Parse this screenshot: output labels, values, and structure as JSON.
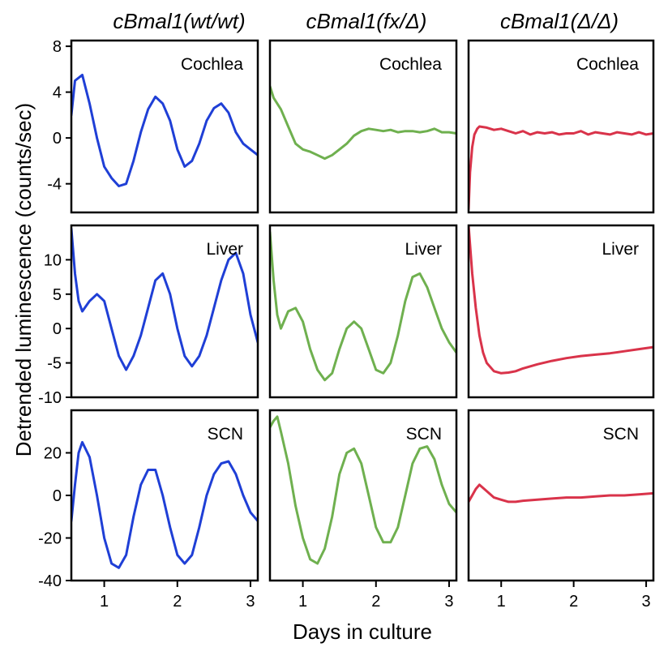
{
  "chart_data": {
    "type": "line",
    "xlabel": "Days in culture",
    "ylabel": "Detrended luminescence (counts/sec)",
    "xlim": [
      0.55,
      3.1
    ],
    "xticks": [
      "1",
      "2",
      "3"
    ],
    "columns": [
      {
        "title": "cBmal1(wt/wt)",
        "color": "#1f3fd6"
      },
      {
        "title": "cBmal1(fx/Δ)",
        "color": "#6fb04f"
      },
      {
        "title": "cBmal1(Δ/Δ)",
        "color": "#d9334a"
      }
    ],
    "rows": [
      {
        "tissue": "Cochlea",
        "ylim": [
          -6.5,
          8.5
        ],
        "yticks": [
          "8",
          "4",
          "0",
          "-4"
        ],
        "series": [
          {
            "x": [
              0.55,
              0.6,
              0.7,
              0.8,
              0.9,
              1.0,
              1.1,
              1.2,
              1.3,
              1.4,
              1.5,
              1.6,
              1.7,
              1.8,
              1.9,
              2.0,
              2.1,
              2.2,
              2.3,
              2.4,
              2.5,
              2.6,
              2.7,
              2.8,
              2.9,
              3.0,
              3.1
            ],
            "y": [
              2,
              5,
              5.5,
              3,
              0,
              -2.5,
              -3.5,
              -4.2,
              -4,
              -2,
              0.5,
              2.5,
              3.6,
              3,
              1.5,
              -1,
              -2.5,
              -2,
              -0.5,
              1.5,
              2.6,
              3,
              2.2,
              0.5,
              -0.5,
              -1,
              -1.5
            ]
          },
          {
            "x": [
              0.55,
              0.6,
              0.7,
              0.8,
              0.9,
              1.0,
              1.1,
              1.2,
              1.3,
              1.4,
              1.5,
              1.6,
              1.7,
              1.8,
              1.9,
              2.0,
              2.1,
              2.2,
              2.3,
              2.4,
              2.5,
              2.6,
              2.7,
              2.8,
              2.9,
              3.0,
              3.1
            ],
            "y": [
              4.5,
              3.5,
              2.5,
              1,
              -0.5,
              -1,
              -1.2,
              -1.5,
              -1.8,
              -1.5,
              -1,
              -0.5,
              0.2,
              0.6,
              0.8,
              0.7,
              0.6,
              0.7,
              0.5,
              0.6,
              0.6,
              0.5,
              0.6,
              0.8,
              0.5,
              0.5,
              0.4
            ]
          },
          {
            "x": [
              0.55,
              0.57,
              0.6,
              0.63,
              0.67,
              0.7,
              0.8,
              0.9,
              1.0,
              1.1,
              1.2,
              1.3,
              1.4,
              1.5,
              1.6,
              1.7,
              1.8,
              1.9,
              2.0,
              2.1,
              2.2,
              2.3,
              2.4,
              2.5,
              2.6,
              2.7,
              2.8,
              2.9,
              3.0,
              3.1
            ],
            "y": [
              -6.2,
              -3,
              -0.8,
              0.3,
              0.8,
              1,
              0.9,
              0.7,
              0.8,
              0.6,
              0.4,
              0.6,
              0.3,
              0.5,
              0.4,
              0.5,
              0.3,
              0.4,
              0.4,
              0.6,
              0.3,
              0.5,
              0.4,
              0.3,
              0.5,
              0.4,
              0.3,
              0.5,
              0.3,
              0.4
            ]
          }
        ]
      },
      {
        "tissue": "Liver",
        "ylim": [
          -10,
          15
        ],
        "yticks": [
          "10",
          "5",
          "0",
          "-5",
          "-10"
        ],
        "series": [
          {
            "x": [
              0.55,
              0.6,
              0.65,
              0.7,
              0.8,
              0.9,
              1.0,
              1.1,
              1.2,
              1.3,
              1.4,
              1.5,
              1.6,
              1.7,
              1.8,
              1.9,
              2.0,
              2.1,
              2.2,
              2.3,
              2.4,
              2.5,
              2.6,
              2.7,
              2.8,
              2.9,
              3.0,
              3.1
            ],
            "y": [
              14.5,
              8,
              4,
              2.5,
              4,
              5,
              4,
              0,
              -4,
              -6,
              -4,
              -1,
              3,
              7,
              8,
              5,
              0,
              -4,
              -5.5,
              -4,
              -1,
              3,
              7,
              10,
              11,
              8,
              2,
              -2
            ]
          },
          {
            "x": [
              0.55,
              0.6,
              0.65,
              0.7,
              0.8,
              0.9,
              1.0,
              1.1,
              1.2,
              1.3,
              1.4,
              1.5,
              1.6,
              1.7,
              1.8,
              1.9,
              2.0,
              2.1,
              2.2,
              2.3,
              2.4,
              2.5,
              2.6,
              2.7,
              2.8,
              2.9,
              3.0,
              3.1
            ],
            "y": [
              14,
              7,
              2,
              0,
              2.5,
              3,
              1,
              -3,
              -6,
              -7.5,
              -6.5,
              -3,
              0,
              1,
              0,
              -3,
              -6,
              -6.5,
              -5,
              -1,
              4,
              7.5,
              8,
              6,
              3,
              0,
              -2,
              -3.5
            ]
          },
          {
            "x": [
              0.55,
              0.6,
              0.65,
              0.7,
              0.75,
              0.8,
              0.9,
              1.0,
              1.1,
              1.2,
              1.3,
              1.5,
              1.7,
              1.9,
              2.1,
              2.3,
              2.5,
              2.7,
              2.9,
              3.1
            ],
            "y": [
              15,
              8,
              3,
              -1,
              -3.5,
              -5,
              -6.2,
              -6.5,
              -6.4,
              -6.2,
              -5.8,
              -5.2,
              -4.7,
              -4.3,
              -4,
              -3.8,
              -3.6,
              -3.3,
              -3,
              -2.7
            ]
          }
        ]
      },
      {
        "tissue": "SCN",
        "ylim": [
          -40,
          40
        ],
        "yticks": [
          "20",
          "0",
          "-20",
          "-40"
        ],
        "series": [
          {
            "x": [
              0.55,
              0.6,
              0.65,
              0.7,
              0.8,
              0.9,
              1.0,
              1.1,
              1.2,
              1.3,
              1.4,
              1.5,
              1.6,
              1.7,
              1.8,
              1.9,
              2.0,
              2.1,
              2.2,
              2.3,
              2.4,
              2.5,
              2.6,
              2.7,
              2.8,
              2.9,
              3.0,
              3.1
            ],
            "y": [
              -12,
              5,
              20,
              25,
              18,
              0,
              -20,
              -32,
              -34,
              -28,
              -10,
              5,
              12,
              12,
              0,
              -15,
              -28,
              -32,
              -28,
              -15,
              0,
              10,
              15,
              16,
              10,
              0,
              -8,
              -12
            ]
          },
          {
            "x": [
              0.55,
              0.6,
              0.65,
              0.7,
              0.8,
              0.9,
              1.0,
              1.1,
              1.2,
              1.3,
              1.4,
              1.5,
              1.6,
              1.7,
              1.8,
              1.9,
              2.0,
              2.1,
              2.2,
              2.3,
              2.4,
              2.5,
              2.6,
              2.7,
              2.8,
              2.9,
              3.0,
              3.1
            ],
            "y": [
              32,
              35,
              37,
              30,
              15,
              -5,
              -20,
              -30,
              -32,
              -25,
              -10,
              10,
              20,
              22,
              15,
              0,
              -15,
              -22,
              -22,
              -15,
              0,
              15,
              22,
              23,
              17,
              5,
              -4,
              -8
            ]
          },
          {
            "x": [
              0.55,
              0.6,
              0.65,
              0.7,
              0.8,
              0.9,
              1.0,
              1.1,
              1.2,
              1.3,
              1.5,
              1.7,
              1.9,
              2.1,
              2.3,
              2.5,
              2.7,
              2.9,
              3.1
            ],
            "y": [
              -3,
              0,
              3,
              5,
              2,
              -1,
              -2,
              -3,
              -3,
              -2.5,
              -2,
              -1.5,
              -1,
              -1,
              -0.5,
              0,
              0,
              0.5,
              1
            ]
          }
        ]
      }
    ]
  }
}
